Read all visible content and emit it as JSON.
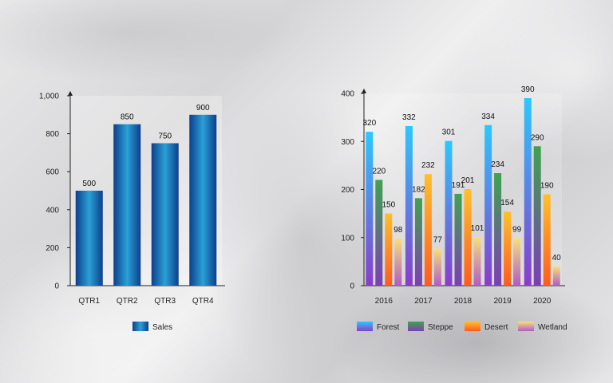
{
  "chart_data": [
    {
      "type": "bar",
      "categories": [
        "QTR1",
        "QTR2",
        "QTR3",
        "QTR4"
      ],
      "series": [
        {
          "name": "Sales",
          "values": [
            500,
            850,
            750,
            900
          ],
          "color": "#1f6fb8"
        }
      ],
      "ylim": [
        0,
        1000
      ],
      "yticks": [
        "0",
        "200",
        "400",
        "600",
        "800",
        "1,000"
      ],
      "ytick_values": [
        0,
        200,
        400,
        600,
        800,
        1000
      ],
      "legend": "bottom",
      "grid": false
    },
    {
      "type": "bar",
      "categories": [
        "2016",
        "2017",
        "2018",
        "2019",
        "2020"
      ],
      "series": [
        {
          "name": "Forest",
          "values": [
            320,
            332,
            301,
            334,
            390
          ],
          "color": "#29b6f6"
        },
        {
          "name": "Steppe",
          "values": [
            220,
            182,
            191,
            234,
            290
          ],
          "color": "#43a047"
        },
        {
          "name": "Desert",
          "values": [
            150,
            232,
            201,
            154,
            190
          ],
          "color": "#ffb300"
        },
        {
          "name": "Wetland",
          "values": [
            98,
            77,
            101,
            99,
            40
          ],
          "color": "#f5d76e"
        }
      ],
      "ylim": [
        0,
        400
      ],
      "yticks": [
        "0",
        "100",
        "200",
        "300",
        "400"
      ],
      "ytick_values": [
        0,
        100,
        200,
        300,
        400
      ],
      "legend": "bottom",
      "grid": false
    }
  ]
}
